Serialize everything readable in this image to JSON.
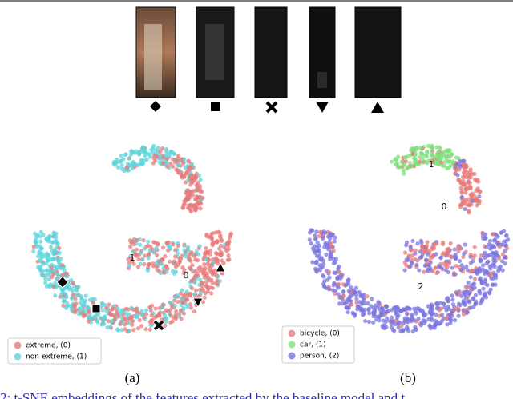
{
  "panels": [
    {
      "label": "(a)",
      "legend": [
        "extreme, (0)",
        "non-extreme, (1)"
      ],
      "cluster_labels": [
        "1",
        "0"
      ]
    },
    {
      "label": "(b)",
      "legend": [
        "bicycle, (0)",
        "car, (1)",
        "person, (2)"
      ],
      "cluster_labels": [
        "1",
        "0",
        "2"
      ]
    }
  ],
  "caption": "2: t-SNE embeddings of the features extracted by the baseline model and t"
}
